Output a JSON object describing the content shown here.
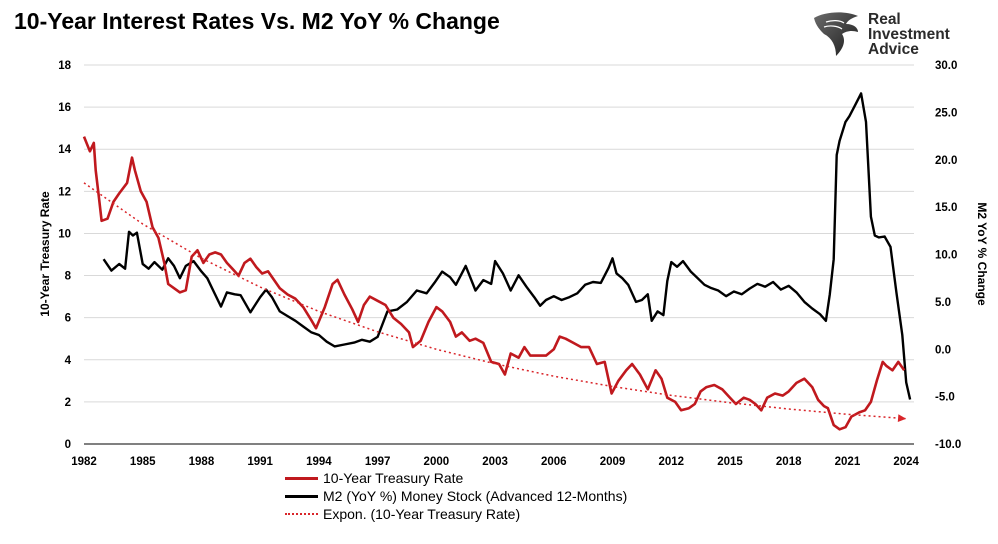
{
  "header": {
    "title": "10-Year Interest Rates Vs. M2 YoY % Change",
    "brand": "Real Investment Advice"
  },
  "chart_data": {
    "type": "line",
    "title": "10-Year Interest Rates Vs. M2 YoY % Change",
    "ylabel_left": "10-Year Treasury Rate",
    "ylabel_right": "M2 YoY % Change",
    "ylim_left": [
      0,
      18
    ],
    "ylim_right": [
      -10,
      30
    ],
    "xlim": [
      1982,
      2024.4
    ],
    "x_ticks": [
      "1982",
      "1985",
      "1988",
      "1991",
      "1994",
      "1997",
      "2000",
      "2003",
      "2006",
      "2009",
      "2012",
      "2015",
      "2018",
      "2021",
      "2024"
    ],
    "y_ticks_left": [
      "0",
      "2",
      "4",
      "6",
      "8",
      "10",
      "12",
      "14",
      "16",
      "18"
    ],
    "y_ticks_right": [
      "-10.0",
      "-5.0",
      "0.0",
      "5.0",
      "10.0",
      "15.0",
      "20.0",
      "25.0",
      "30.0"
    ],
    "grid": "horizontal",
    "legend_position": "bottom",
    "colors": {
      "treasury": "#c0191e",
      "m2": "#000000",
      "trend": "#d9252a"
    },
    "series": [
      {
        "name": "10-Year Treasury Rate",
        "axis": "left",
        "x": [
          1982.0,
          1982.3,
          1982.5,
          1982.6,
          1982.75,
          1982.9,
          1983.2,
          1983.5,
          1983.8,
          1984.2,
          1984.45,
          1984.6,
          1984.9,
          1985.2,
          1985.5,
          1985.8,
          1986.1,
          1986.3,
          1986.6,
          1986.9,
          1987.2,
          1987.5,
          1987.8,
          1988.1,
          1988.4,
          1988.7,
          1989.0,
          1989.3,
          1989.6,
          1989.9,
          1990.2,
          1990.5,
          1990.8,
          1991.1,
          1991.4,
          1991.7,
          1992.0,
          1992.4,
          1992.8,
          1993.2,
          1993.6,
          1993.85,
          1994.3,
          1994.7,
          1994.95,
          1995.3,
          1995.7,
          1996.0,
          1996.3,
          1996.6,
          1997.0,
          1997.4,
          1997.8,
          1998.2,
          1998.6,
          1998.8,
          1999.2,
          1999.6,
          2000.0,
          2000.3,
          2000.7,
          2001.0,
          2001.3,
          2001.7,
          2002.0,
          2002.4,
          2002.8,
          2003.2,
          2003.5,
          2003.8,
          2004.2,
          2004.5,
          2004.8,
          2005.2,
          2005.6,
          2006.0,
          2006.3,
          2006.6,
          2007.0,
          2007.4,
          2007.8,
          2008.2,
          2008.6,
          2008.95,
          2009.3,
          2009.7,
          2010.0,
          2010.4,
          2010.8,
          2011.2,
          2011.5,
          2011.8,
          2012.2,
          2012.5,
          2012.9,
          2013.2,
          2013.5,
          2013.8,
          2014.2,
          2014.6,
          2015.0,
          2015.3,
          2015.7,
          2016.0,
          2016.3,
          2016.6,
          2016.9,
          2017.3,
          2017.7,
          2018.0,
          2018.4,
          2018.8,
          2019.2,
          2019.5,
          2019.8,
          2020.0,
          2020.3,
          2020.6,
          2020.9,
          2021.2,
          2021.6,
          2021.9,
          2022.2,
          2022.5,
          2022.8,
          2023.0,
          2023.3,
          2023.6,
          2023.9
        ],
        "values": [
          14.6,
          13.9,
          14.3,
          13.0,
          11.8,
          10.6,
          10.7,
          11.5,
          11.9,
          12.4,
          13.6,
          13.0,
          12.0,
          11.5,
          10.3,
          9.8,
          8.6,
          7.6,
          7.4,
          7.2,
          7.3,
          8.9,
          9.2,
          8.6,
          9.0,
          9.1,
          9.0,
          8.6,
          8.3,
          8.0,
          8.6,
          8.8,
          8.4,
          8.1,
          8.2,
          7.8,
          7.4,
          7.1,
          6.9,
          6.5,
          5.9,
          5.5,
          6.5,
          7.6,
          7.8,
          7.1,
          6.4,
          5.8,
          6.6,
          7.0,
          6.8,
          6.6,
          6.0,
          5.7,
          5.3,
          4.6,
          4.9,
          5.8,
          6.5,
          6.3,
          5.8,
          5.1,
          5.3,
          4.9,
          5.0,
          4.8,
          3.9,
          3.8,
          3.3,
          4.3,
          4.1,
          4.6,
          4.2,
          4.2,
          4.2,
          4.5,
          5.1,
          5.0,
          4.8,
          4.6,
          4.6,
          3.8,
          3.9,
          2.4,
          3.0,
          3.5,
          3.8,
          3.3,
          2.6,
          3.5,
          3.1,
          2.2,
          2.0,
          1.6,
          1.7,
          1.9,
          2.5,
          2.7,
          2.8,
          2.6,
          2.2,
          1.9,
          2.2,
          2.1,
          1.9,
          1.6,
          2.2,
          2.4,
          2.3,
          2.5,
          2.9,
          3.1,
          2.7,
          2.1,
          1.8,
          1.7,
          0.9,
          0.7,
          0.8,
          1.3,
          1.5,
          1.6,
          2.0,
          3.0,
          3.9,
          3.7,
          3.5,
          3.9,
          3.5
        ]
      },
      {
        "name": "M2 (YoY %) Money Stock (Advanced 12-Months)",
        "axis": "right",
        "x": [
          1983.0,
          1983.4,
          1983.8,
          1984.1,
          1984.3,
          1984.5,
          1984.7,
          1985.0,
          1985.3,
          1985.6,
          1986.0,
          1986.3,
          1986.6,
          1986.9,
          1987.2,
          1987.6,
          1988.0,
          1988.3,
          1988.6,
          1989.0,
          1989.3,
          1989.7,
          1990.0,
          1990.5,
          1991.0,
          1991.3,
          1991.6,
          1992.0,
          1992.4,
          1992.8,
          1993.2,
          1993.6,
          1994.0,
          1994.4,
          1994.8,
          1995.3,
          1995.8,
          1996.2,
          1996.6,
          1997.0,
          1997.5,
          1998.0,
          1998.5,
          1999.0,
          1999.5,
          1999.9,
          2000.3,
          2000.7,
          2001.0,
          2001.5,
          2002.0,
          2002.4,
          2002.8,
          2003.0,
          2003.4,
          2003.8,
          2004.2,
          2004.6,
          2005.0,
          2005.3,
          2005.6,
          2006.0,
          2006.4,
          2006.8,
          2007.2,
          2007.6,
          2008.0,
          2008.4,
          2008.8,
          2009.0,
          2009.2,
          2009.5,
          2009.8,
          2010.2,
          2010.5,
          2010.8,
          2011.0,
          2011.3,
          2011.6,
          2011.8,
          2012.0,
          2012.3,
          2012.6,
          2013.0,
          2013.3,
          2013.7,
          2014.0,
          2014.4,
          2014.8,
          2015.2,
          2015.6,
          2016.0,
          2016.4,
          2016.8,
          2017.2,
          2017.6,
          2018.0,
          2018.4,
          2018.8,
          2019.2,
          2019.6,
          2019.9,
          2020.1,
          2020.3,
          2020.45,
          2020.6,
          2020.9,
          2021.1,
          2021.4,
          2021.7,
          2021.95,
          2022.2,
          2022.4,
          2022.6,
          2022.9,
          2023.2,
          2023.5,
          2023.8,
          2024.0,
          2024.2
        ],
        "values": [
          9.5,
          8.3,
          9.0,
          8.5,
          12.4,
          12.0,
          12.3,
          9.0,
          8.5,
          9.2,
          8.4,
          9.6,
          8.8,
          7.5,
          8.8,
          9.3,
          8.2,
          7.5,
          6.2,
          4.5,
          6.0,
          5.8,
          5.7,
          3.9,
          5.5,
          6.3,
          5.5,
          4.0,
          3.5,
          3.0,
          2.4,
          1.8,
          1.5,
          0.8,
          0.3,
          0.5,
          0.7,
          1.0,
          0.8,
          1.3,
          4.0,
          4.2,
          5.0,
          6.2,
          5.9,
          7.0,
          8.2,
          7.6,
          6.8,
          8.8,
          6.2,
          7.3,
          6.9,
          9.3,
          8.0,
          6.2,
          7.8,
          6.6,
          5.5,
          4.6,
          5.2,
          5.6,
          5.2,
          5.5,
          5.9,
          6.8,
          7.1,
          7.0,
          8.6,
          9.6,
          8.0,
          7.5,
          6.8,
          5.0,
          5.2,
          5.8,
          3.0,
          4.0,
          3.6,
          7.2,
          9.2,
          8.7,
          9.3,
          8.2,
          7.6,
          6.8,
          6.5,
          6.2,
          5.6,
          6.1,
          5.8,
          6.4,
          6.9,
          6.6,
          7.1,
          6.3,
          6.7,
          6.0,
          5.0,
          4.3,
          3.7,
          3.0,
          5.8,
          9.5,
          20.5,
          22.0,
          24.0,
          24.6,
          25.8,
          27.0,
          24.0,
          14.0,
          12.0,
          11.8,
          11.9,
          10.8,
          6.0,
          1.5,
          -3.5,
          -5.3
        ]
      },
      {
        "name": "Expon. (10-Year Treasury Rate)",
        "axis": "left",
        "style": "dotted",
        "x": [
          1982.0,
          1985.0,
          1988.0,
          1991.0,
          1994.0,
          1997.0,
          2000.0,
          2003.0,
          2006.0,
          2009.0,
          2012.0,
          2015.0,
          2018.0,
          2021.0,
          2024.0
        ],
        "values": [
          12.4,
          10.45,
          8.82,
          7.45,
          6.3,
          5.33,
          4.5,
          3.81,
          3.22,
          2.73,
          2.31,
          1.96,
          1.66,
          1.41,
          1.2
        ]
      }
    ]
  }
}
